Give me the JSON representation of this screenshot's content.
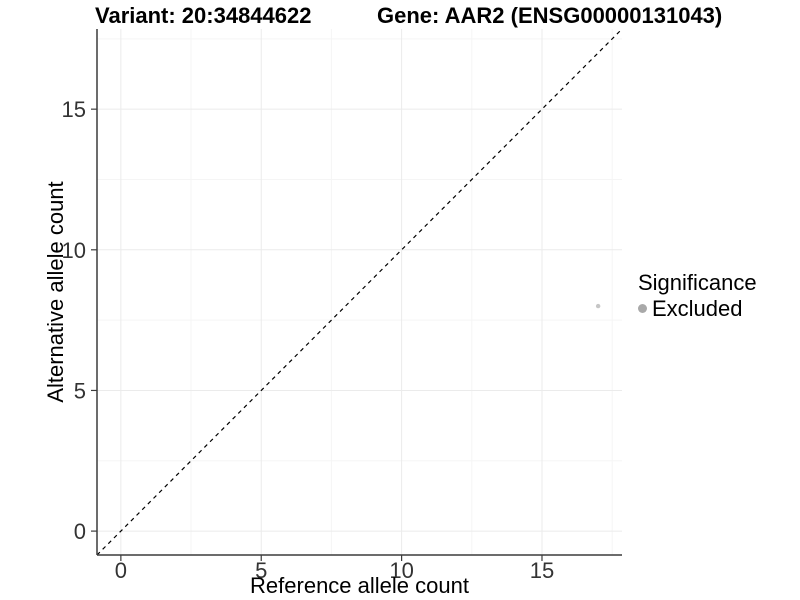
{
  "chart_data": {
    "type": "scatter",
    "titles": {
      "left": "Variant: 20:34844622",
      "right": "Gene: AAR2 (ENSG00000131043)"
    },
    "xlabel": "Reference allele count",
    "ylabel": "Alternative allele count",
    "xlim": [
      -0.85,
      17.85
    ],
    "ylim": [
      -0.85,
      17.85
    ],
    "x_ticks": [
      0,
      5,
      10,
      15
    ],
    "y_ticks": [
      0,
      5,
      10,
      15
    ],
    "x_minor_ticks": [
      2.5,
      7.5,
      12.5,
      17.5
    ],
    "y_minor_ticks": [
      2.5,
      7.5,
      12.5,
      17.5
    ],
    "grid": "major and minor, no panel border, left and bottom axis lines only",
    "points": [
      {
        "x": 17,
        "y": 8,
        "series": "Excluded"
      }
    ],
    "identity_line": {
      "style": "dashed",
      "from": [
        -0.85,
        -0.85
      ],
      "to": [
        17.85,
        17.85
      ]
    },
    "legend": {
      "title": "Significance",
      "position": "right",
      "items": [
        {
          "label": "Excluded",
          "color": "#a9a9a9"
        }
      ]
    },
    "style": {
      "background": "#ffffff",
      "grid_major_color": "#ebebeb",
      "grid_minor_color": "#f5f5f5",
      "axis_line_color": "#3c3c3c",
      "tick_color": "#3c3c3c",
      "tick_label_color": "#333333",
      "title_color": "#000000",
      "point_color": "#c6c6c6",
      "point_radius": 2.2,
      "identity_line_color": "#000000"
    }
  }
}
